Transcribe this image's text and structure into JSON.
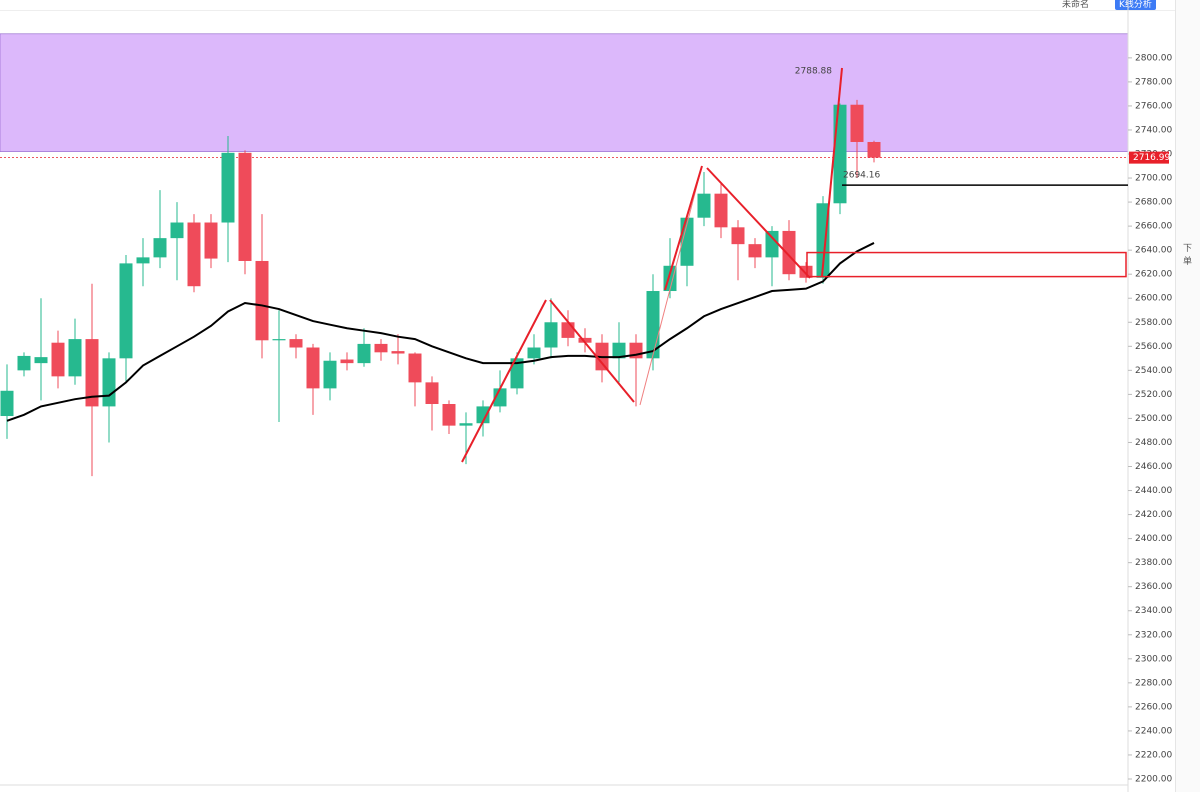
{
  "toolbar": {
    "layout_name": "未命名",
    "analysis_button": "K线分析"
  },
  "sidebar": {
    "order": "下单"
  },
  "chart_data": {
    "type": "candlestick",
    "up_color": "#26b98f",
    "down_color": "#ef4b5a",
    "ma_color": "#000000",
    "open": [
      2502,
      2540,
      2546,
      2563,
      2535,
      2566,
      2510,
      2550,
      2629,
      2634,
      2650,
      2663,
      2663,
      2663,
      2721,
      2631,
      2565,
      2566,
      2559,
      2525,
      2549,
      2546,
      2562,
      2556,
      2554,
      2530,
      2512,
      2494,
      2496,
      2510,
      2525,
      2550,
      2559,
      2580,
      2567,
      2563,
      2550,
      2563,
      2550,
      2606,
      2627,
      2667,
      2687,
      2659,
      2645,
      2634,
      2656,
      2627,
      2617,
      2679,
      2761,
      2730
    ],
    "high": [
      2545,
      2555,
      2600,
      2573,
      2583,
      2612,
      2555,
      2636,
      2650,
      2690,
      2680,
      2670,
      2670,
      2735,
      2723,
      2670,
      2590,
      2570,
      2562,
      2555,
      2555,
      2575,
      2566,
      2570,
      2555,
      2535,
      2515,
      2505,
      2515,
      2540,
      2555,
      2570,
      2600,
      2590,
      2575,
      2570,
      2580,
      2570,
      2620,
      2650,
      2670,
      2705,
      2695,
      2665,
      2650,
      2660,
      2665,
      2630,
      2685,
      2762,
      2765,
      2731
    ],
    "low": [
      2483,
      2535,
      2515,
      2525,
      2528,
      2452,
      2480,
      2530,
      2610,
      2625,
      2615,
      2605,
      2625,
      2630,
      2620,
      2550,
      2497,
      2550,
      2503,
      2515,
      2540,
      2543,
      2548,
      2545,
      2510,
      2490,
      2487,
      2462,
      2485,
      2505,
      2520,
      2545,
      2550,
      2560,
      2555,
      2530,
      2530,
      2510,
      2540,
      2600,
      2610,
      2660,
      2650,
      2615,
      2625,
      2610,
      2615,
      2613,
      2612,
      2670,
      2700,
      2713
    ],
    "close": [
      2523,
      2552,
      2551,
      2535,
      2566,
      2510,
      2550,
      2629,
      2634,
      2650,
      2663,
      2610,
      2633,
      2721,
      2631,
      2565,
      2566,
      2559,
      2525,
      2548,
      2546,
      2562,
      2555,
      2554,
      2530,
      2512,
      2494,
      2496,
      2510,
      2525,
      2550,
      2559,
      2580,
      2567,
      2563,
      2540,
      2563,
      2550,
      2606,
      2627,
      2667,
      2687,
      2659,
      2645,
      2634,
      2656,
      2620,
      2617,
      2679,
      2761,
      2730,
      2717
    ],
    "ma": [
      2498,
      2503,
      2510,
      2513,
      2516,
      2518,
      2519,
      2530,
      2544,
      2552,
      2560,
      2568,
      2577,
      2589,
      2596,
      2594,
      2591,
      2586,
      2581,
      2578,
      2575,
      2573,
      2571,
      2568,
      2566,
      2560,
      2555,
      2550,
      2546,
      2546,
      2546,
      2548,
      2551,
      2552,
      2552,
      2551,
      2551,
      2553,
      2556,
      2566,
      2575,
      2585,
      2591,
      2596,
      2601,
      2606,
      2607,
      2608,
      2614,
      2629,
      2639,
      2646
    ],
    "zone": {
      "low": 2722,
      "high": 2820,
      "color": "#dcb8fb"
    },
    "box": {
      "low": 2618,
      "high": 2638,
      "color": "#e8202a"
    },
    "price_line": {
      "value": 2716.99,
      "label": "2716.99",
      "color": "#e8202a"
    },
    "support_line": {
      "value": 2694.16,
      "label": "2694.16"
    },
    "high_marker": {
      "value": 2788.88,
      "label": "2788.88"
    },
    "ylim": [
      2195,
      2829
    ],
    "yticks": [
      {
        "value": 2200,
        "label": "2200.00"
      },
      {
        "value": 2220,
        "label": "2220.00"
      },
      {
        "value": 2240,
        "label": "2240.00"
      },
      {
        "value": 2260,
        "label": "2260.00"
      },
      {
        "value": 2280,
        "label": "2280.00"
      },
      {
        "value": 2300,
        "label": "2300.00"
      },
      {
        "value": 2320,
        "label": "2320.00"
      },
      {
        "value": 2340,
        "label": "2340.00"
      },
      {
        "value": 2360,
        "label": "2360.00"
      },
      {
        "value": 2380,
        "label": "2380.00"
      },
      {
        "value": 2400,
        "label": "2400.00"
      },
      {
        "value": 2420,
        "label": "2420.00"
      },
      {
        "value": 2440,
        "label": "2440.00"
      },
      {
        "value": 2460,
        "label": "2460.00"
      },
      {
        "value": 2480,
        "label": "2480.00"
      },
      {
        "value": 2500,
        "label": "2500.00"
      },
      {
        "value": 2520,
        "label": "2520.00"
      },
      {
        "value": 2540,
        "label": "2540.00"
      },
      {
        "value": 2560,
        "label": "2560.00"
      },
      {
        "value": 2580,
        "label": "2580.00"
      },
      {
        "value": 2600,
        "label": "2600.00"
      },
      {
        "value": 2620,
        "label": "2620.00"
      },
      {
        "value": 2640,
        "label": "2640.00"
      },
      {
        "value": 2660,
        "label": "2660.00"
      },
      {
        "value": 2680,
        "label": "2680.00"
      },
      {
        "value": 2700,
        "label": "2700.00"
      },
      {
        "value": 2720,
        "label": "2720.00"
      },
      {
        "value": 2740,
        "label": "2740.00"
      },
      {
        "value": 2760,
        "label": "2760.00"
      },
      {
        "value": 2780,
        "label": "2780.00"
      },
      {
        "value": 2800,
        "label": "2800.00"
      }
    ]
  }
}
